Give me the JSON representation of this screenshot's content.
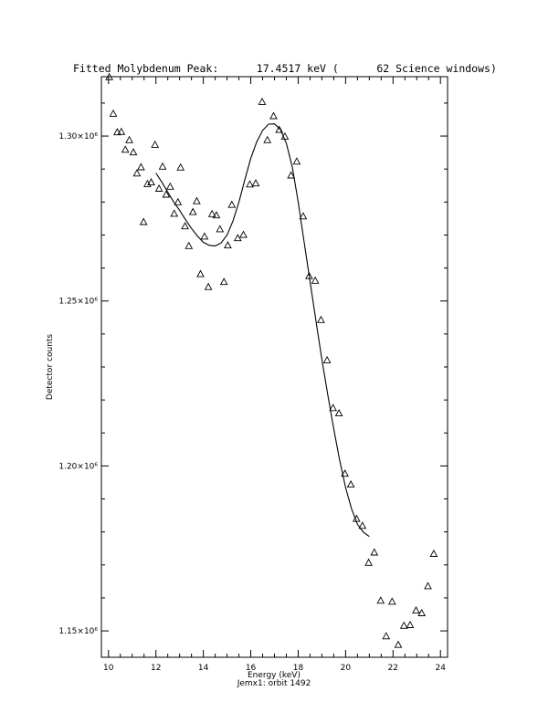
{
  "chart_data": {
    "type": "scatter",
    "title": "Fitted Molybdenum Peak:      17.4517 keV (      62 Science windows)",
    "xlabel": "Energy (keV)",
    "ylabel": "Detector counts",
    "subtitle": "Jemx1: orbit 1492",
    "xlim": [
      9.7,
      24.3
    ],
    "ylim": [
      1142000,
      1318000
    ],
    "x_ticks": [
      10,
      12,
      14,
      16,
      18,
      20,
      22,
      24
    ],
    "x_tick_labels": [
      "10",
      "12",
      "14",
      "16",
      "18",
      "20",
      "22",
      "24"
    ],
    "y_ticks": [
      1150000,
      1200000,
      1250000,
      1300000
    ],
    "y_tick_labels": [
      "1.15×10⁶",
      "1.20×10⁶",
      "1.25×10⁶",
      "1.30×10⁶"
    ],
    "grid": false,
    "series": [
      {
        "marker": "triangle",
        "points": [
          [
            10.03,
            1317800
          ],
          [
            10.2,
            1306700
          ],
          [
            10.37,
            1301100
          ],
          [
            10.54,
            1301200
          ],
          [
            10.71,
            1295800
          ],
          [
            10.88,
            1298700
          ],
          [
            11.05,
            1295000
          ],
          [
            11.2,
            1288600
          ],
          [
            11.37,
            1290500
          ],
          [
            11.48,
            1273900
          ],
          [
            11.64,
            1285400
          ],
          [
            11.8,
            1285900
          ],
          [
            11.96,
            1297300
          ],
          [
            12.13,
            1284000
          ],
          [
            12.28,
            1290700
          ],
          [
            12.43,
            1282200
          ],
          [
            12.6,
            1284600
          ],
          [
            12.77,
            1276400
          ],
          [
            12.93,
            1279900
          ],
          [
            13.04,
            1290400
          ],
          [
            13.23,
            1272600
          ],
          [
            13.39,
            1266600
          ],
          [
            13.56,
            1276900
          ],
          [
            13.72,
            1280200
          ],
          [
            13.88,
            1258100
          ],
          [
            14.05,
            1269500
          ],
          [
            14.21,
            1254200
          ],
          [
            14.37,
            1276300
          ],
          [
            14.55,
            1275900
          ],
          [
            14.7,
            1271700
          ],
          [
            14.87,
            1255700
          ],
          [
            15.03,
            1266800
          ],
          [
            15.2,
            1279100
          ],
          [
            15.45,
            1269000
          ],
          [
            15.69,
            1270000
          ],
          [
            15.96,
            1285300
          ],
          [
            16.21,
            1285600
          ],
          [
            16.48,
            1310300
          ],
          [
            16.7,
            1298700
          ],
          [
            16.96,
            1306000
          ],
          [
            17.2,
            1301800
          ],
          [
            17.44,
            1299800
          ],
          [
            17.7,
            1288000
          ],
          [
            17.94,
            1292200
          ],
          [
            18.21,
            1275600
          ],
          [
            18.46,
            1257500
          ],
          [
            18.72,
            1256100
          ],
          [
            18.96,
            1244200
          ],
          [
            19.22,
            1232000
          ],
          [
            19.47,
            1217500
          ],
          [
            19.72,
            1215900
          ],
          [
            19.97,
            1197600
          ],
          [
            20.22,
            1194300
          ],
          [
            20.46,
            1183900
          ],
          [
            20.71,
            1181800
          ],
          [
            20.97,
            1170600
          ],
          [
            21.21,
            1173700
          ],
          [
            21.48,
            1159100
          ],
          [
            21.71,
            1148300
          ],
          [
            21.96,
            1158800
          ],
          [
            22.22,
            1145700
          ],
          [
            22.46,
            1151500
          ],
          [
            22.72,
            1151700
          ],
          [
            22.97,
            1156100
          ],
          [
            23.21,
            1155300
          ],
          [
            23.47,
            1163500
          ],
          [
            23.72,
            1173300
          ]
        ]
      },
      {
        "line": "solid",
        "points": [
          [
            12.0,
            1288800
          ],
          [
            12.25,
            1286000
          ],
          [
            12.5,
            1283000
          ],
          [
            12.75,
            1280000
          ],
          [
            13.0,
            1277500
          ],
          [
            13.25,
            1274600
          ],
          [
            13.5,
            1272000
          ],
          [
            13.75,
            1269700
          ],
          [
            14.0,
            1267800
          ],
          [
            14.25,
            1266900
          ],
          [
            14.5,
            1266700
          ],
          [
            14.75,
            1267600
          ],
          [
            15.0,
            1270000
          ],
          [
            15.25,
            1274300
          ],
          [
            15.5,
            1280000
          ],
          [
            15.75,
            1286800
          ],
          [
            16.0,
            1293200
          ],
          [
            16.25,
            1298200
          ],
          [
            16.5,
            1301700
          ],
          [
            16.75,
            1303600
          ],
          [
            17.0,
            1303700
          ],
          [
            17.25,
            1302000
          ],
          [
            17.5,
            1297800
          ],
          [
            17.75,
            1290600
          ],
          [
            18.0,
            1280000
          ],
          [
            18.25,
            1268000
          ],
          [
            18.5,
            1256000
          ],
          [
            18.75,
            1244000
          ],
          [
            19.0,
            1232300
          ],
          [
            19.25,
            1221500
          ],
          [
            19.5,
            1211200
          ],
          [
            19.75,
            1201700
          ],
          [
            20.0,
            1193400
          ],
          [
            20.25,
            1187000
          ],
          [
            20.5,
            1182300
          ],
          [
            20.75,
            1179900
          ],
          [
            21.0,
            1178600
          ]
        ]
      }
    ]
  }
}
